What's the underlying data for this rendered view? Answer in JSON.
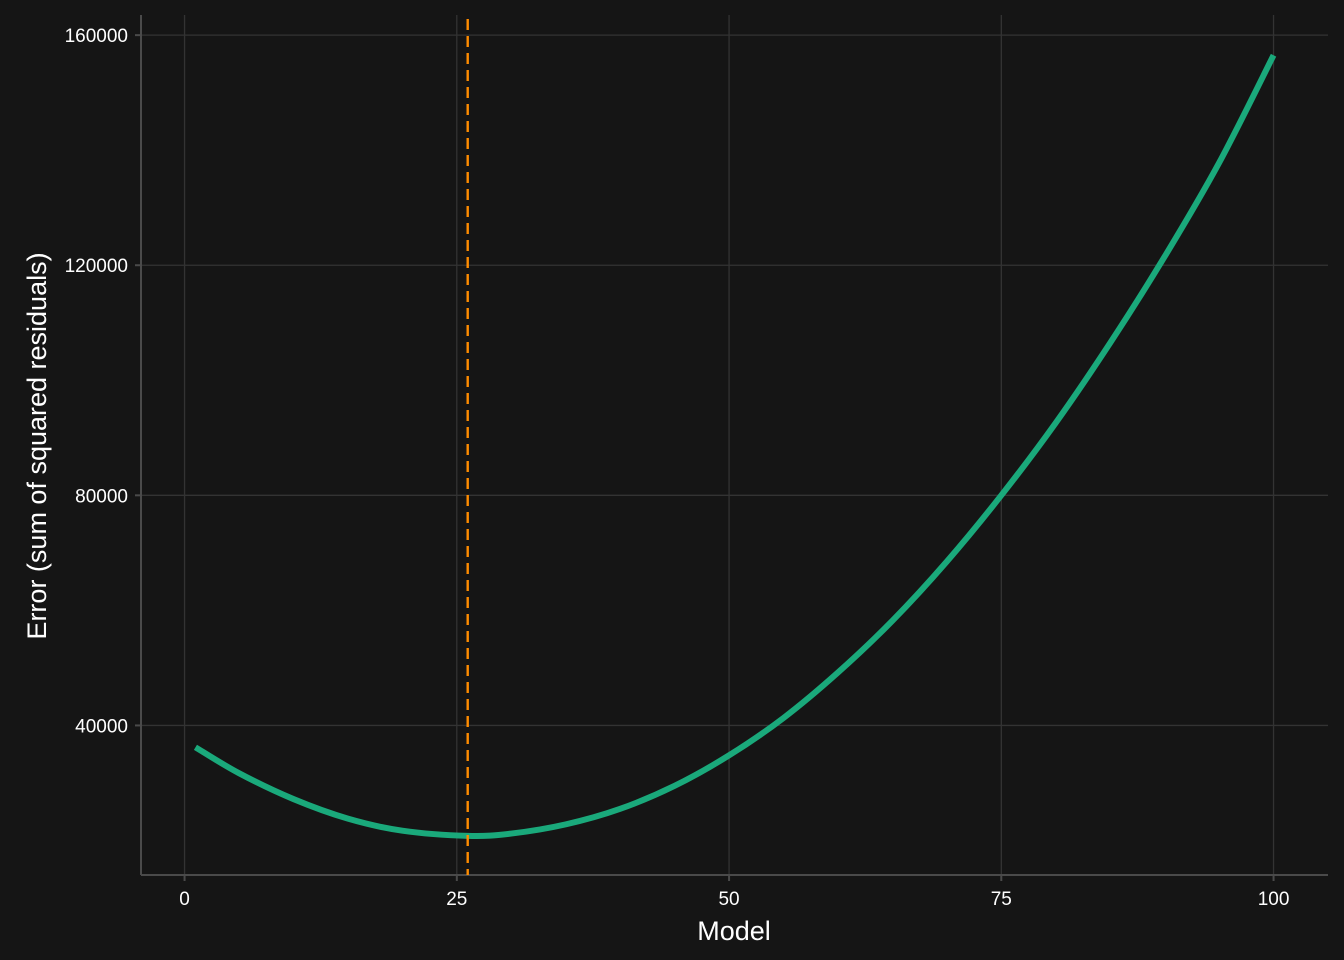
{
  "chart_data": {
    "type": "line",
    "title": "",
    "xlabel": "Model",
    "ylabel": "Error (sum of squared residuals)",
    "xlim": [
      -4,
      105
    ],
    "ylim": [
      14000,
      163500
    ],
    "x_ticks": [
      0,
      25,
      50,
      75,
      100
    ],
    "y_ticks": [
      40000,
      80000,
      120000,
      160000
    ],
    "x_tick_labels": [
      "0",
      "25",
      "50",
      "75",
      "100"
    ],
    "y_tick_labels": [
      "40000",
      "80000",
      "120000",
      "160000"
    ],
    "grid": true,
    "series": [
      {
        "color": "#1aa97b",
        "x": [
          1,
          5,
          10,
          15,
          20,
          26,
          30,
          35,
          40,
          45,
          50,
          55,
          60,
          65,
          70,
          75,
          80,
          85,
          90,
          95,
          100
        ],
        "y": [
          36200,
          31700,
          27200,
          23800,
          21700,
          20800,
          21200,
          22800,
          25500,
          29500,
          34800,
          41300,
          49200,
          58200,
          68500,
          80000,
          92600,
          106500,
          121500,
          137800,
          156500
        ]
      }
    ],
    "vline": {
      "x": 26,
      "color": "#ff8c00",
      "style": "dashed"
    }
  }
}
